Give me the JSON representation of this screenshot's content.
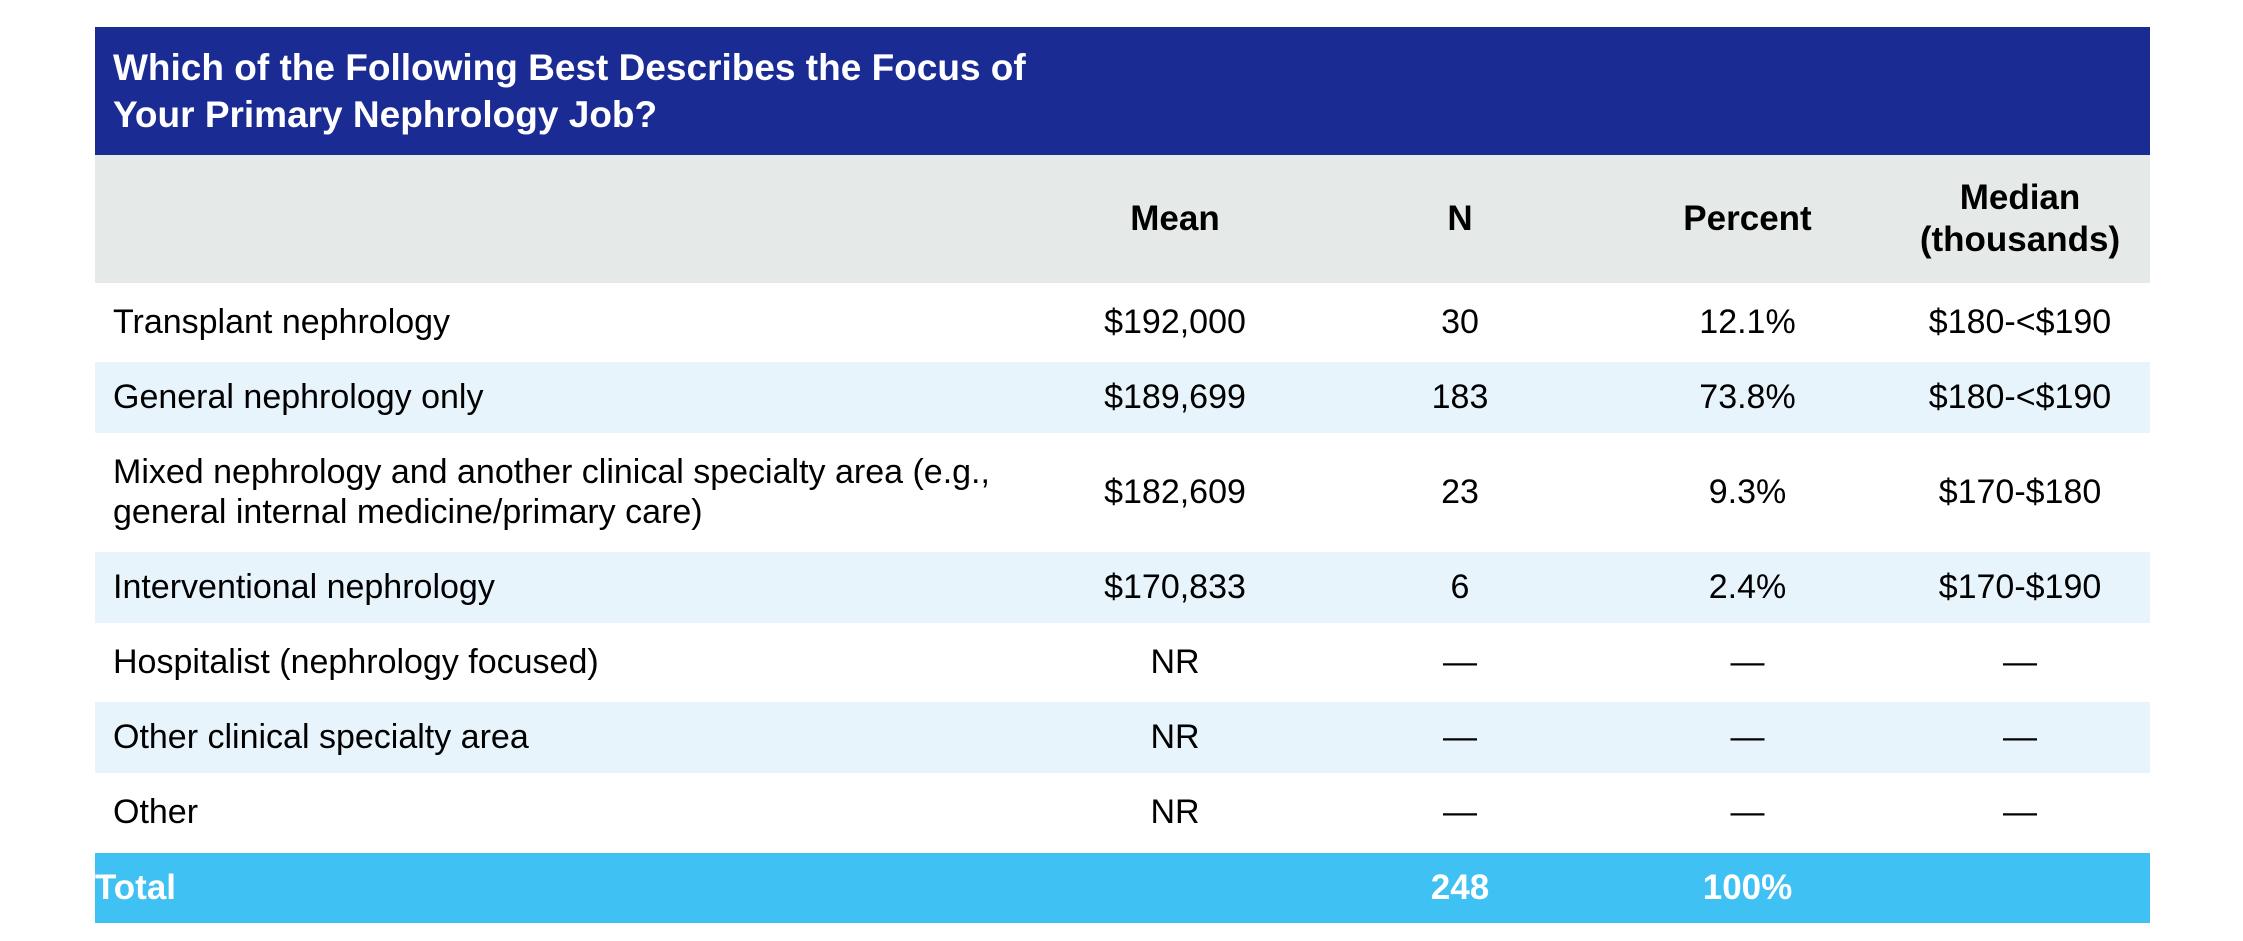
{
  "chart_data": {
    "type": "table",
    "title": "Which of the Following Best Describes the Focus of Your Primary Nephrology Job?",
    "columns": [
      "",
      "Mean",
      "N",
      "Percent",
      "Median (thousands)"
    ],
    "rows": [
      {
        "label": "Transplant nephrology",
        "mean": "$192,000",
        "n": "30",
        "percent": "12.1%",
        "median": "$180-<$190"
      },
      {
        "label": "General nephrology only",
        "mean": "$189,699",
        "n": "183",
        "percent": "73.8%",
        "median": "$180-<$190"
      },
      {
        "label": "Mixed nephrology and another clinical specialty area (e.g., general internal medicine/primary care)",
        "mean": "$182,609",
        "n": "23",
        "percent": "9.3%",
        "median": "$170-$180"
      },
      {
        "label": "Interventional nephrology",
        "mean": "$170,833",
        "n": "6",
        "percent": "2.4%",
        "median": "$170-$190"
      },
      {
        "label": "Hospitalist (nephrology focused)",
        "mean": "NR",
        "n": "—",
        "percent": "—",
        "median": "—"
      },
      {
        "label": "Other clinical specialty area",
        "mean": "NR",
        "n": "—",
        "percent": "—",
        "median": "—"
      },
      {
        "label": "Other",
        "mean": "NR",
        "n": "—",
        "percent": "—",
        "median": "—"
      }
    ],
    "total": {
      "label": "Total",
      "mean": "",
      "n": "248",
      "percent": "100%",
      "median": ""
    }
  },
  "colors": {
    "title_bar_bg": "#1b2b94",
    "title_bar_text": "#ffffff",
    "column_header_bg": "#e5eae9",
    "row_bg": "#ffffff",
    "row_alt_bg": "#e8f4fc",
    "total_row_bg": "#3fc1f3",
    "total_row_text": "#ffffff",
    "body_text": "#000000"
  }
}
